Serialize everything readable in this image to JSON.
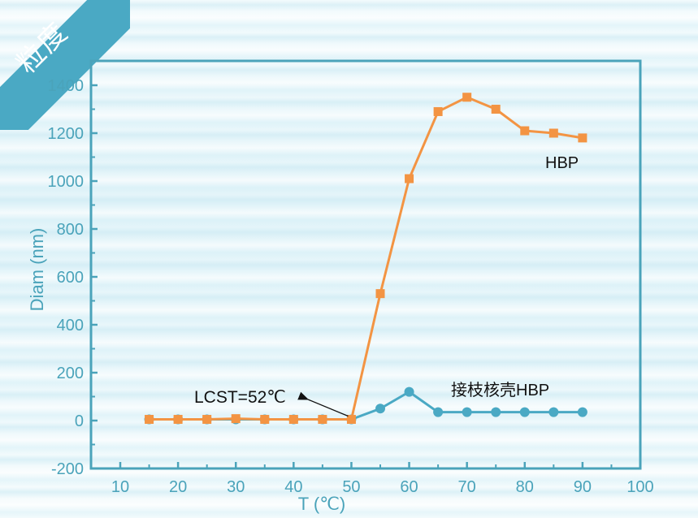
{
  "corner_tag": {
    "label": "粒度",
    "color": "#4aa9c4"
  },
  "chart_data": {
    "type": "line",
    "title": "",
    "xlabel": "T (℃)",
    "ylabel": "Diam (nm)",
    "xlim": [
      5,
      100
    ],
    "ylim": [
      -200,
      1500
    ],
    "xticks": [
      10,
      20,
      30,
      40,
      50,
      60,
      70,
      80,
      90,
      100
    ],
    "yticks": [
      -200,
      0,
      200,
      400,
      600,
      800,
      1000,
      1200,
      1400
    ],
    "grid": false,
    "x": [
      15,
      20,
      25,
      30,
      35,
      40,
      45,
      50,
      55,
      60,
      65,
      70,
      75,
      80,
      85,
      90
    ],
    "series": [
      {
        "name": "HBP",
        "marker": "square",
        "color": "#f39443",
        "values": [
          5,
          5,
          5,
          8,
          5,
          5,
          5,
          5,
          530,
          1010,
          1290,
          1350,
          1300,
          1210,
          1200,
          1180
        ]
      },
      {
        "name": "接枝核壳HBP",
        "marker": "circle",
        "color": "#4aa9c4",
        "values": [
          5,
          5,
          5,
          5,
          5,
          5,
          5,
          5,
          50,
          120,
          35,
          35,
          35,
          35,
          35,
          35
        ]
      }
    ],
    "annotations": [
      {
        "text": "LCST=52℃",
        "arrow_to": [
          50,
          5
        ]
      },
      {
        "text": "HBP",
        "near_series": "HBP"
      },
      {
        "text": "接枝核壳HBP",
        "near_series": "接枝核壳HBP"
      }
    ],
    "legend": "inline labels"
  },
  "labels": {
    "xlabel": "T (℃)",
    "ylabel": "Diam (nm)",
    "lcst": "LCST=52℃",
    "hbp": "HBP",
    "grafted": "接枝核壳HBP"
  },
  "colors": {
    "axis": "#4aa3ba",
    "hbp": "#f39443",
    "grafted": "#4aa9c4"
  }
}
